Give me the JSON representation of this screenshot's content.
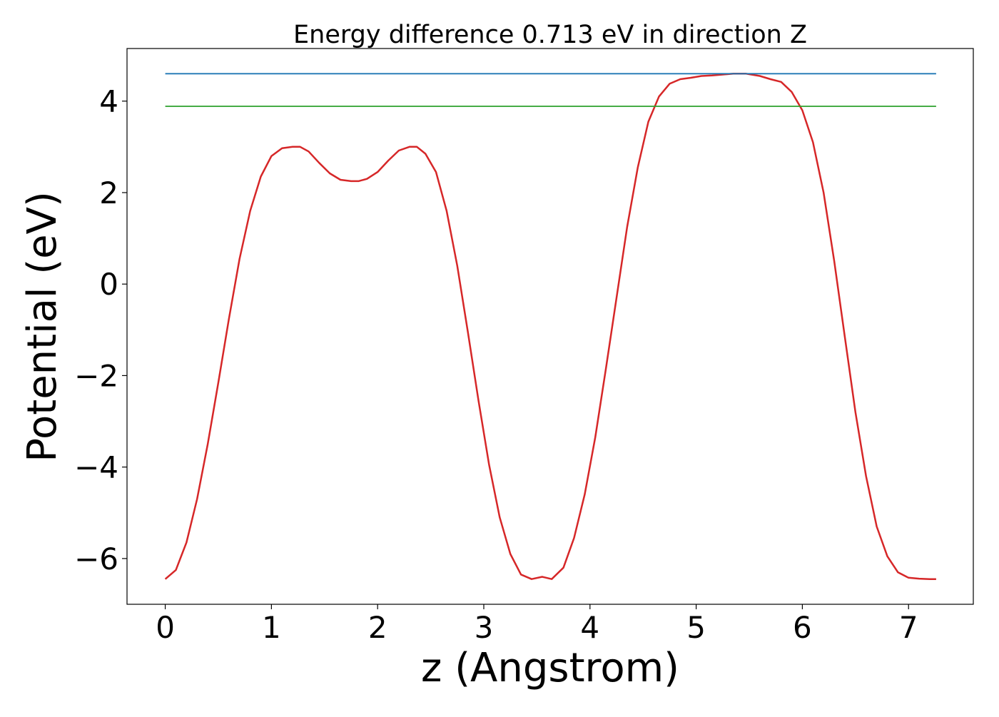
{
  "chart_data": {
    "type": "line",
    "title": "Energy difference 0.713 eV in direction Z",
    "xlabel": "z (Angstrom)",
    "ylabel": "Potential (eV)",
    "xlim": [
      -0.36,
      7.61
    ],
    "ylim": [
      -7.0,
      5.15
    ],
    "x_ticks": [
      0,
      1,
      2,
      3,
      4,
      5,
      6,
      7
    ],
    "y_ticks": [
      -6,
      -4,
      -2,
      0,
      2,
      4
    ],
    "x_tick_labels": [
      "0",
      "1",
      "2",
      "3",
      "4",
      "5",
      "6",
      "7"
    ],
    "y_tick_labels": [
      "−6",
      "−4",
      "−2",
      "0",
      "2",
      "4"
    ],
    "grid": false,
    "legend": "none",
    "series": [
      {
        "color": "#d62728",
        "x": [
          0,
          0.1,
          0.2,
          0.3,
          0.4,
          0.5,
          0.6,
          0.7,
          0.8,
          0.9,
          1.0,
          1.1,
          1.2,
          1.27,
          1.35,
          1.45,
          1.55,
          1.65,
          1.75,
          1.82,
          1.9,
          2.0,
          2.1,
          2.2,
          2.3,
          2.37,
          2.45,
          2.55,
          2.65,
          2.75,
          2.85,
          2.95,
          3.05,
          3.15,
          3.25,
          3.35,
          3.45,
          3.55,
          3.64,
          3.75,
          3.85,
          3.95,
          4.05,
          4.15,
          4.25,
          4.35,
          4.45,
          4.55,
          4.65,
          4.75,
          4.85,
          4.95,
          5.05,
          5.15,
          5.25,
          5.35,
          5.47,
          5.6,
          5.7,
          5.8,
          5.9,
          6.0,
          6.1,
          6.2,
          6.3,
          6.4,
          6.5,
          6.6,
          6.7,
          6.8,
          6.9,
          7.0,
          7.1,
          7.2,
          7.26
        ],
        "y": [
          -6.45,
          -6.25,
          -5.65,
          -4.7,
          -3.5,
          -2.15,
          -0.75,
          0.55,
          1.6,
          2.35,
          2.8,
          2.97,
          3.0,
          3.0,
          2.9,
          2.65,
          2.42,
          2.28,
          2.25,
          2.25,
          2.3,
          2.45,
          2.7,
          2.92,
          3.0,
          3.0,
          2.85,
          2.45,
          1.6,
          0.4,
          -1.05,
          -2.55,
          -3.95,
          -5.1,
          -5.9,
          -6.35,
          -6.45,
          -6.4,
          -6.45,
          -6.2,
          -5.55,
          -4.6,
          -3.35,
          -1.85,
          -0.3,
          1.25,
          2.55,
          3.55,
          4.1,
          4.38,
          4.48,
          4.51,
          4.55,
          4.56,
          4.58,
          4.6,
          4.6,
          4.55,
          4.48,
          4.42,
          4.2,
          3.8,
          3.1,
          2.0,
          0.5,
          -1.15,
          -2.8,
          -4.2,
          -5.3,
          -5.95,
          -6.3,
          -6.42,
          -6.44,
          -6.45,
          -6.45
        ]
      },
      {
        "color": "#1f77b4",
        "x": [
          0,
          7.26
        ],
        "y": [
          4.6,
          4.6
        ]
      },
      {
        "color": "#2ca02c",
        "x": [
          0,
          7.26
        ],
        "y": [
          3.887,
          3.887
        ]
      }
    ]
  }
}
